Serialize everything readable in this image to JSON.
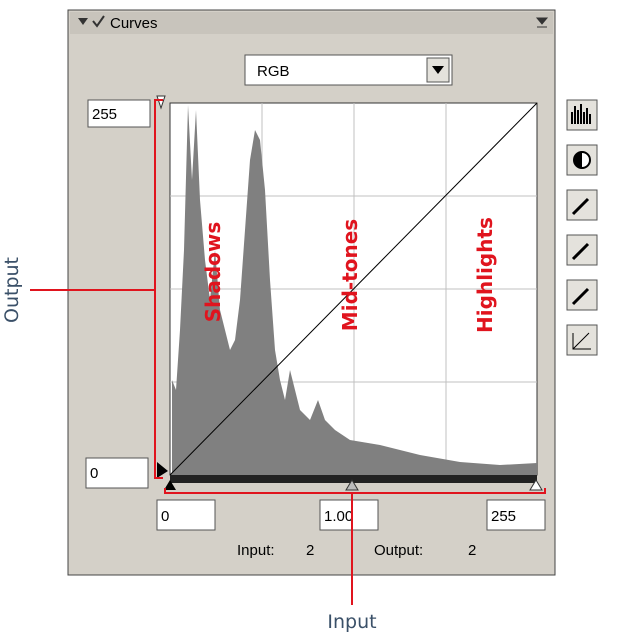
{
  "panel": {
    "title": "Curves",
    "channel": "RGB",
    "output_max": "255",
    "output_min": "0",
    "zones": [
      "Shadows",
      "Mid-tones",
      "Highlights"
    ],
    "input_fields": [
      "0",
      "1.00",
      "255"
    ],
    "status": {
      "input_label": "Input:",
      "input_value": "2",
      "output_label": "Output:",
      "output_value": "2"
    }
  },
  "annotations": {
    "output": "Output",
    "input": "Input"
  }
}
